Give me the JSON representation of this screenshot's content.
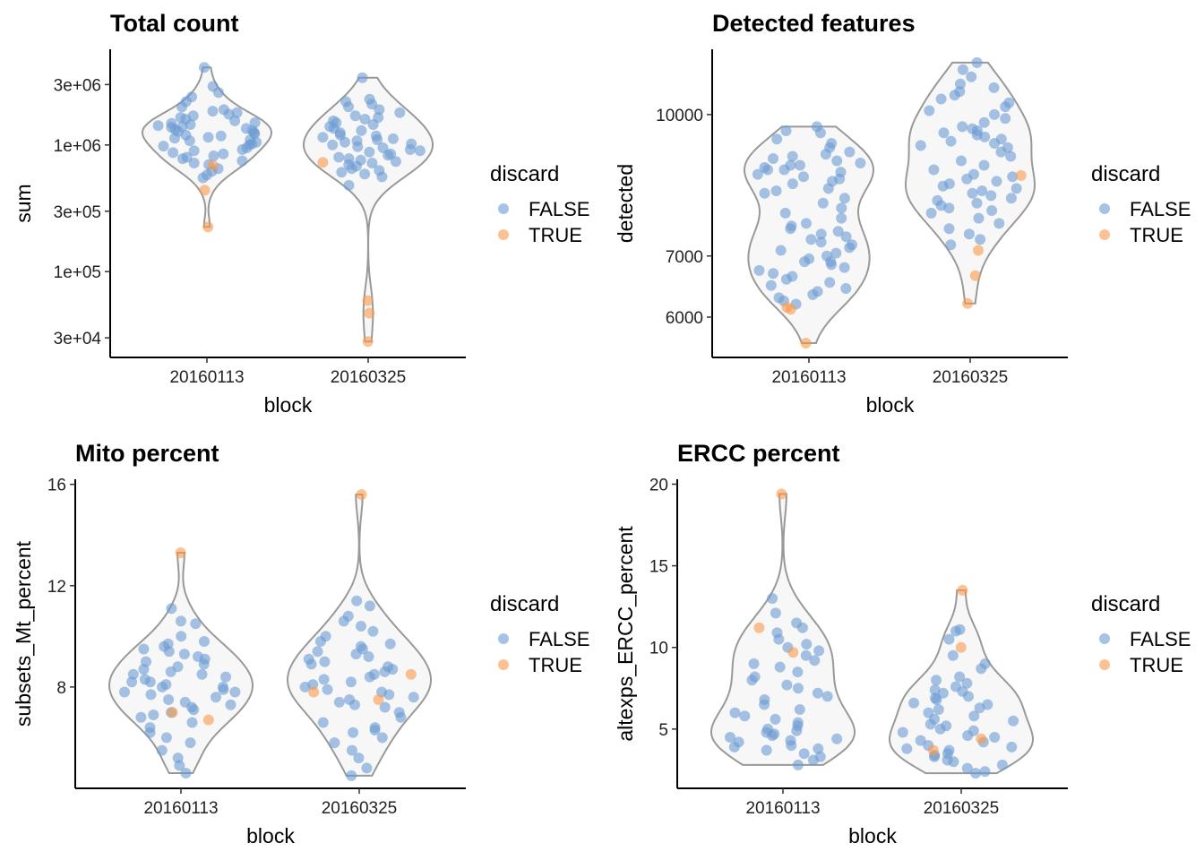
{
  "chart_data": [
    {
      "type": "violin",
      "title": "Total count",
      "xlabel": "block",
      "ylabel": "sum",
      "yscale": "log10",
      "ylim": [
        21000,
        5700000
      ],
      "yticks": [
        30000,
        100000,
        300000,
        1000000,
        3000000
      ],
      "ytick_labels": [
        "3e+04",
        "1e+05",
        "3e+05",
        "1e+06",
        "3e+06"
      ],
      "categories": [
        "20160113",
        "20160325"
      ],
      "legend": {
        "title": "discard",
        "entries": [
          "FALSE",
          "TRUE"
        ],
        "placement": "right"
      },
      "groups": [
        {
          "false": [
            4100000,
            2900000,
            2600000,
            2400000,
            2200000,
            2000000,
            1900000,
            1850000,
            1800000,
            1750000,
            1700000,
            1650000,
            1600000,
            1550000,
            1500000,
            1480000,
            1450000,
            1420000,
            1400000,
            1380000,
            1350000,
            1320000,
            1300000,
            1280000,
            1250000,
            1230000,
            1200000,
            1180000,
            1150000,
            1130000,
            1100000,
            1080000,
            1050000,
            1020000,
            1000000,
            980000,
            950000,
            920000,
            900000,
            870000,
            850000,
            820000,
            800000,
            780000,
            750000,
            720000,
            700000,
            650000,
            620000,
            580000,
            550000
          ],
          "true": [
            690000,
            440000,
            225000
          ]
        },
        {
          "false": [
            3400000,
            2300000,
            2200000,
            2100000,
            2000000,
            1900000,
            1800000,
            1700000,
            1650000,
            1600000,
            1550000,
            1500000,
            1450000,
            1400000,
            1350000,
            1300000,
            1250000,
            1200000,
            1180000,
            1150000,
            1120000,
            1100000,
            1080000,
            1050000,
            1020000,
            1000000,
            970000,
            950000,
            920000,
            900000,
            880000,
            850000,
            830000,
            800000,
            780000,
            760000,
            740000,
            720000,
            700000,
            680000,
            650000,
            630000,
            610000,
            590000,
            560000,
            480000
          ],
          "true": [
            730000,
            59000,
            47000,
            28000
          ]
        }
      ]
    },
    {
      "type": "violin",
      "title": "Detected features",
      "xlabel": "block",
      "ylabel": "detected",
      "yscale": "log10",
      "ylim": [
        5420,
        11790
      ],
      "yticks": [
        6000,
        7000,
        10000
      ],
      "ytick_labels": [
        "6000",
        "7000",
        "10000"
      ],
      "categories": [
        "20160113",
        "20160325"
      ],
      "legend": {
        "title": "discard",
        "entries": [
          "FALSE",
          "TRUE"
        ],
        "placement": "right"
      },
      "groups": [
        {
          "false": [
            9700,
            9600,
            9550,
            9400,
            9300,
            9200,
            9100,
            9050,
            9000,
            8950,
            8900,
            8850,
            8800,
            8800,
            8750,
            8700,
            8700,
            8650,
            8600,
            8550,
            8500,
            8450,
            8400,
            8300,
            8250,
            8200,
            8100,
            8000,
            7900,
            7800,
            7700,
            7600,
            7550,
            7500,
            7450,
            7400,
            7350,
            7300,
            7250,
            7200,
            7150,
            7100,
            7050,
            7000,
            6950,
            6900,
            6900,
            6850,
            6800,
            6750,
            6700,
            6650,
            6600,
            6550,
            6500,
            6450,
            6400,
            6350,
            6300,
            6250,
            6200
          ],
          "true": [
            6120,
            6150,
            5620
          ]
        },
        {
          "false": [
            11400,
            11200,
            11000,
            10800,
            10700,
            10600,
            10500,
            10400,
            10300,
            10200,
            10100,
            10000,
            9900,
            9800,
            9700,
            9650,
            9600,
            9550,
            9500,
            9450,
            9400,
            9350,
            9300,
            9250,
            9200,
            9100,
            9000,
            8900,
            8800,
            8700,
            8600,
            8550,
            8500,
            8450,
            8400,
            8350,
            8300,
            8250,
            8200,
            8150,
            8100,
            8050,
            8000,
            7950,
            7900,
            7850,
            7800,
            7700,
            7600,
            7500,
            7400,
            7300,
            7200
          ],
          "true": [
            8575,
            7100,
            6660,
            6210
          ]
        }
      ]
    },
    {
      "type": "violin",
      "title": "Mito percent",
      "xlabel": "block",
      "ylabel": "subsets_Mt_percent",
      "yscale": "linear",
      "ylim": [
        4.0,
        16.2
      ],
      "yticks": [
        8,
        12,
        16
      ],
      "ytick_labels": [
        "8",
        "12",
        "16"
      ],
      "categories": [
        "20160113",
        "20160325"
      ],
      "legend": {
        "title": "discard",
        "entries": [
          "FALSE",
          "TRUE"
        ],
        "placement": "right"
      },
      "groups": [
        {
          "false": [
            11.1,
            10.6,
            10.5,
            10.0,
            9.8,
            9.7,
            9.6,
            9.5,
            9.4,
            9.3,
            9.2,
            9.1,
            9.0,
            8.9,
            8.8,
            8.7,
            8.6,
            8.5,
            8.5,
            8.4,
            8.3,
            8.2,
            8.2,
            8.1,
            8.0,
            8.0,
            7.9,
            7.8,
            7.8,
            7.7,
            7.6,
            7.5,
            7.4,
            7.3,
            7.2,
            7.1,
            7.0,
            6.9,
            6.8,
            6.6,
            6.4,
            6.2,
            6.0,
            5.8,
            5.5,
            5.2,
            4.9,
            4.6
          ],
          "true": [
            13.3,
            6.7,
            7.0
          ]
        },
        {
          "false": [
            11.4,
            11.2,
            10.8,
            10.6,
            10.4,
            10.2,
            10.0,
            9.8,
            9.7,
            9.6,
            9.5,
            9.4,
            9.3,
            9.2,
            9.1,
            9.0,
            8.9,
            8.8,
            8.7,
            8.6,
            8.5,
            8.4,
            8.3,
            8.2,
            8.1,
            8.0,
            7.9,
            7.8,
            7.7,
            7.6,
            7.5,
            7.4,
            7.3,
            7.2,
            7.0,
            6.8,
            6.6,
            6.4,
            6.3,
            6.2,
            6.0,
            5.8,
            5.5,
            5.2,
            4.8,
            4.5
          ],
          "true": [
            15.6,
            7.8,
            7.5,
            8.5
          ]
        }
      ]
    },
    {
      "type": "violin",
      "title": "ERCC percent",
      "xlabel": "block",
      "ylabel": "altexps_ERCC_percent",
      "yscale": "linear",
      "ylim": [
        1.37,
        20.3
      ],
      "yticks": [
        5,
        10,
        15,
        20
      ],
      "ytick_labels": [
        "5",
        "10",
        "15",
        "20"
      ],
      "categories": [
        "20160113",
        "20160325"
      ],
      "legend": {
        "title": "discard",
        "entries": [
          "FALSE",
          "TRUE"
        ],
        "placement": "right"
      },
      "groups": [
        {
          "false": [
            13.0,
            12.1,
            11.5,
            11.2,
            10.9,
            10.5,
            10.2,
            10.0,
            9.8,
            9.5,
            9.2,
            9.0,
            8.8,
            8.5,
            8.2,
            8.0,
            7.7,
            7.5,
            7.2,
            7.0,
            6.8,
            6.5,
            6.2,
            6.0,
            5.8,
            5.6,
            5.4,
            5.2,
            5.0,
            4.9,
            4.8,
            4.7,
            4.6,
            4.5,
            4.4,
            4.3,
            4.2,
            4.0,
            3.9,
            3.8,
            3.7,
            3.5,
            3.3,
            3.1,
            2.8
          ],
          "true": [
            19.4,
            11.2,
            9.7
          ]
        },
        {
          "false": [
            11.1,
            11.0,
            10.5,
            9.5,
            9.0,
            8.7,
            8.2,
            8.0,
            7.8,
            7.6,
            7.4,
            7.3,
            7.2,
            7.0,
            6.9,
            6.8,
            6.6,
            6.5,
            6.3,
            6.2,
            6.0,
            5.8,
            5.6,
            5.5,
            5.3,
            5.2,
            5.0,
            4.9,
            4.8,
            4.6,
            4.5,
            4.3,
            4.2,
            4.0,
            3.9,
            3.8,
            3.7,
            3.5,
            3.4,
            3.3,
            3.1,
            3.0,
            2.8,
            2.6,
            2.4,
            2.3
          ],
          "true": [
            13.5,
            10.0,
            4.4,
            3.7
          ]
        }
      ]
    }
  ],
  "colors": {
    "FALSE": "#6a9bd3",
    "TRUE": "#fb9a4b",
    "violin_fill": "#f7f7f7",
    "violin_stroke": "#999999"
  }
}
